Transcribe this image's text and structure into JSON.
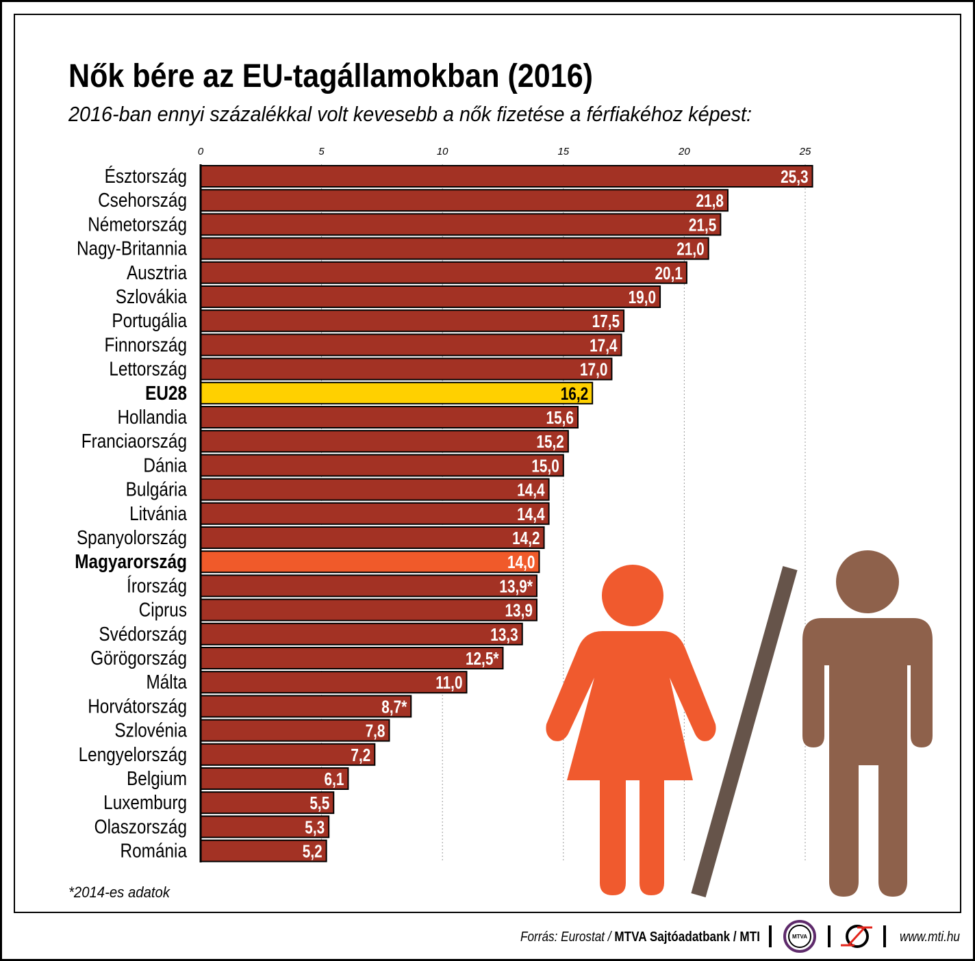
{
  "chart_data": {
    "type": "bar",
    "orientation": "horizontal",
    "title": "Nők bére az EU-tagállamokban (2016)",
    "subtitle": "2016-ban ennyi százalékkal volt kevesebb a nők fizetése a férfiakéhoz képest:",
    "xlim": [
      0,
      25
    ],
    "xticks": [
      0,
      5,
      10,
      15,
      20,
      25
    ],
    "grid": true,
    "categories": [
      "Észtország",
      "Csehország",
      "Németország",
      "Nagy-Britannia",
      "Ausztria",
      "Szlovákia",
      "Portugália",
      "Finnország",
      "Lettország",
      "EU28",
      "Hollandia",
      "Franciaország",
      "Dánia",
      "Bulgária",
      "Litvánia",
      "Spanyolország",
      "Magyarország",
      "Írország",
      "Ciprus",
      "Svédország",
      "Görögország",
      "Málta",
      "Horvátország",
      "Szlovénia",
      "Lengyelország",
      "Belgium",
      "Luxemburg",
      "Olaszország",
      "Románia"
    ],
    "values": [
      25.3,
      21.8,
      21.5,
      21.0,
      20.1,
      19.0,
      17.5,
      17.4,
      17.0,
      16.2,
      15.6,
      15.2,
      15.0,
      14.4,
      14.4,
      14.2,
      14.0,
      13.9,
      13.9,
      13.3,
      12.5,
      11.0,
      8.7,
      7.8,
      7.2,
      6.1,
      5.5,
      5.3,
      5.2
    ],
    "value_labels": [
      "25,3",
      "21,8",
      "21,5",
      "21,0",
      "20,1",
      "19,0",
      "17,5",
      "17,4",
      "17,0",
      "16,2",
      "15,6",
      "15,2",
      "15,0",
      "14,4",
      "14,4",
      "14,2",
      "14,0",
      "13,9*",
      "13,9",
      "13,3",
      "12,5*",
      "11,0",
      "8,7*",
      "7,8",
      "7,2",
      "6,1",
      "5,5",
      "5,3",
      "5,2"
    ],
    "highlighted": {
      "EU28": "#FFD000",
      "Magyarország": "#F05A2A"
    },
    "bold_categories": [
      "EU28",
      "Magyarország"
    ],
    "bar_color": "#A33224",
    "footnote": "*2014-es adatok"
  },
  "colors": {
    "woman": "#F05A2E",
    "man": "#8E614B",
    "slash": "#66544A"
  },
  "footer": {
    "source_prefix": "Forrás: Eurostat / ",
    "source_bold": "MTVA Sajtóadatbank / MTI",
    "logo_mtva": "MTVA",
    "url": "www.mti.hu"
  }
}
